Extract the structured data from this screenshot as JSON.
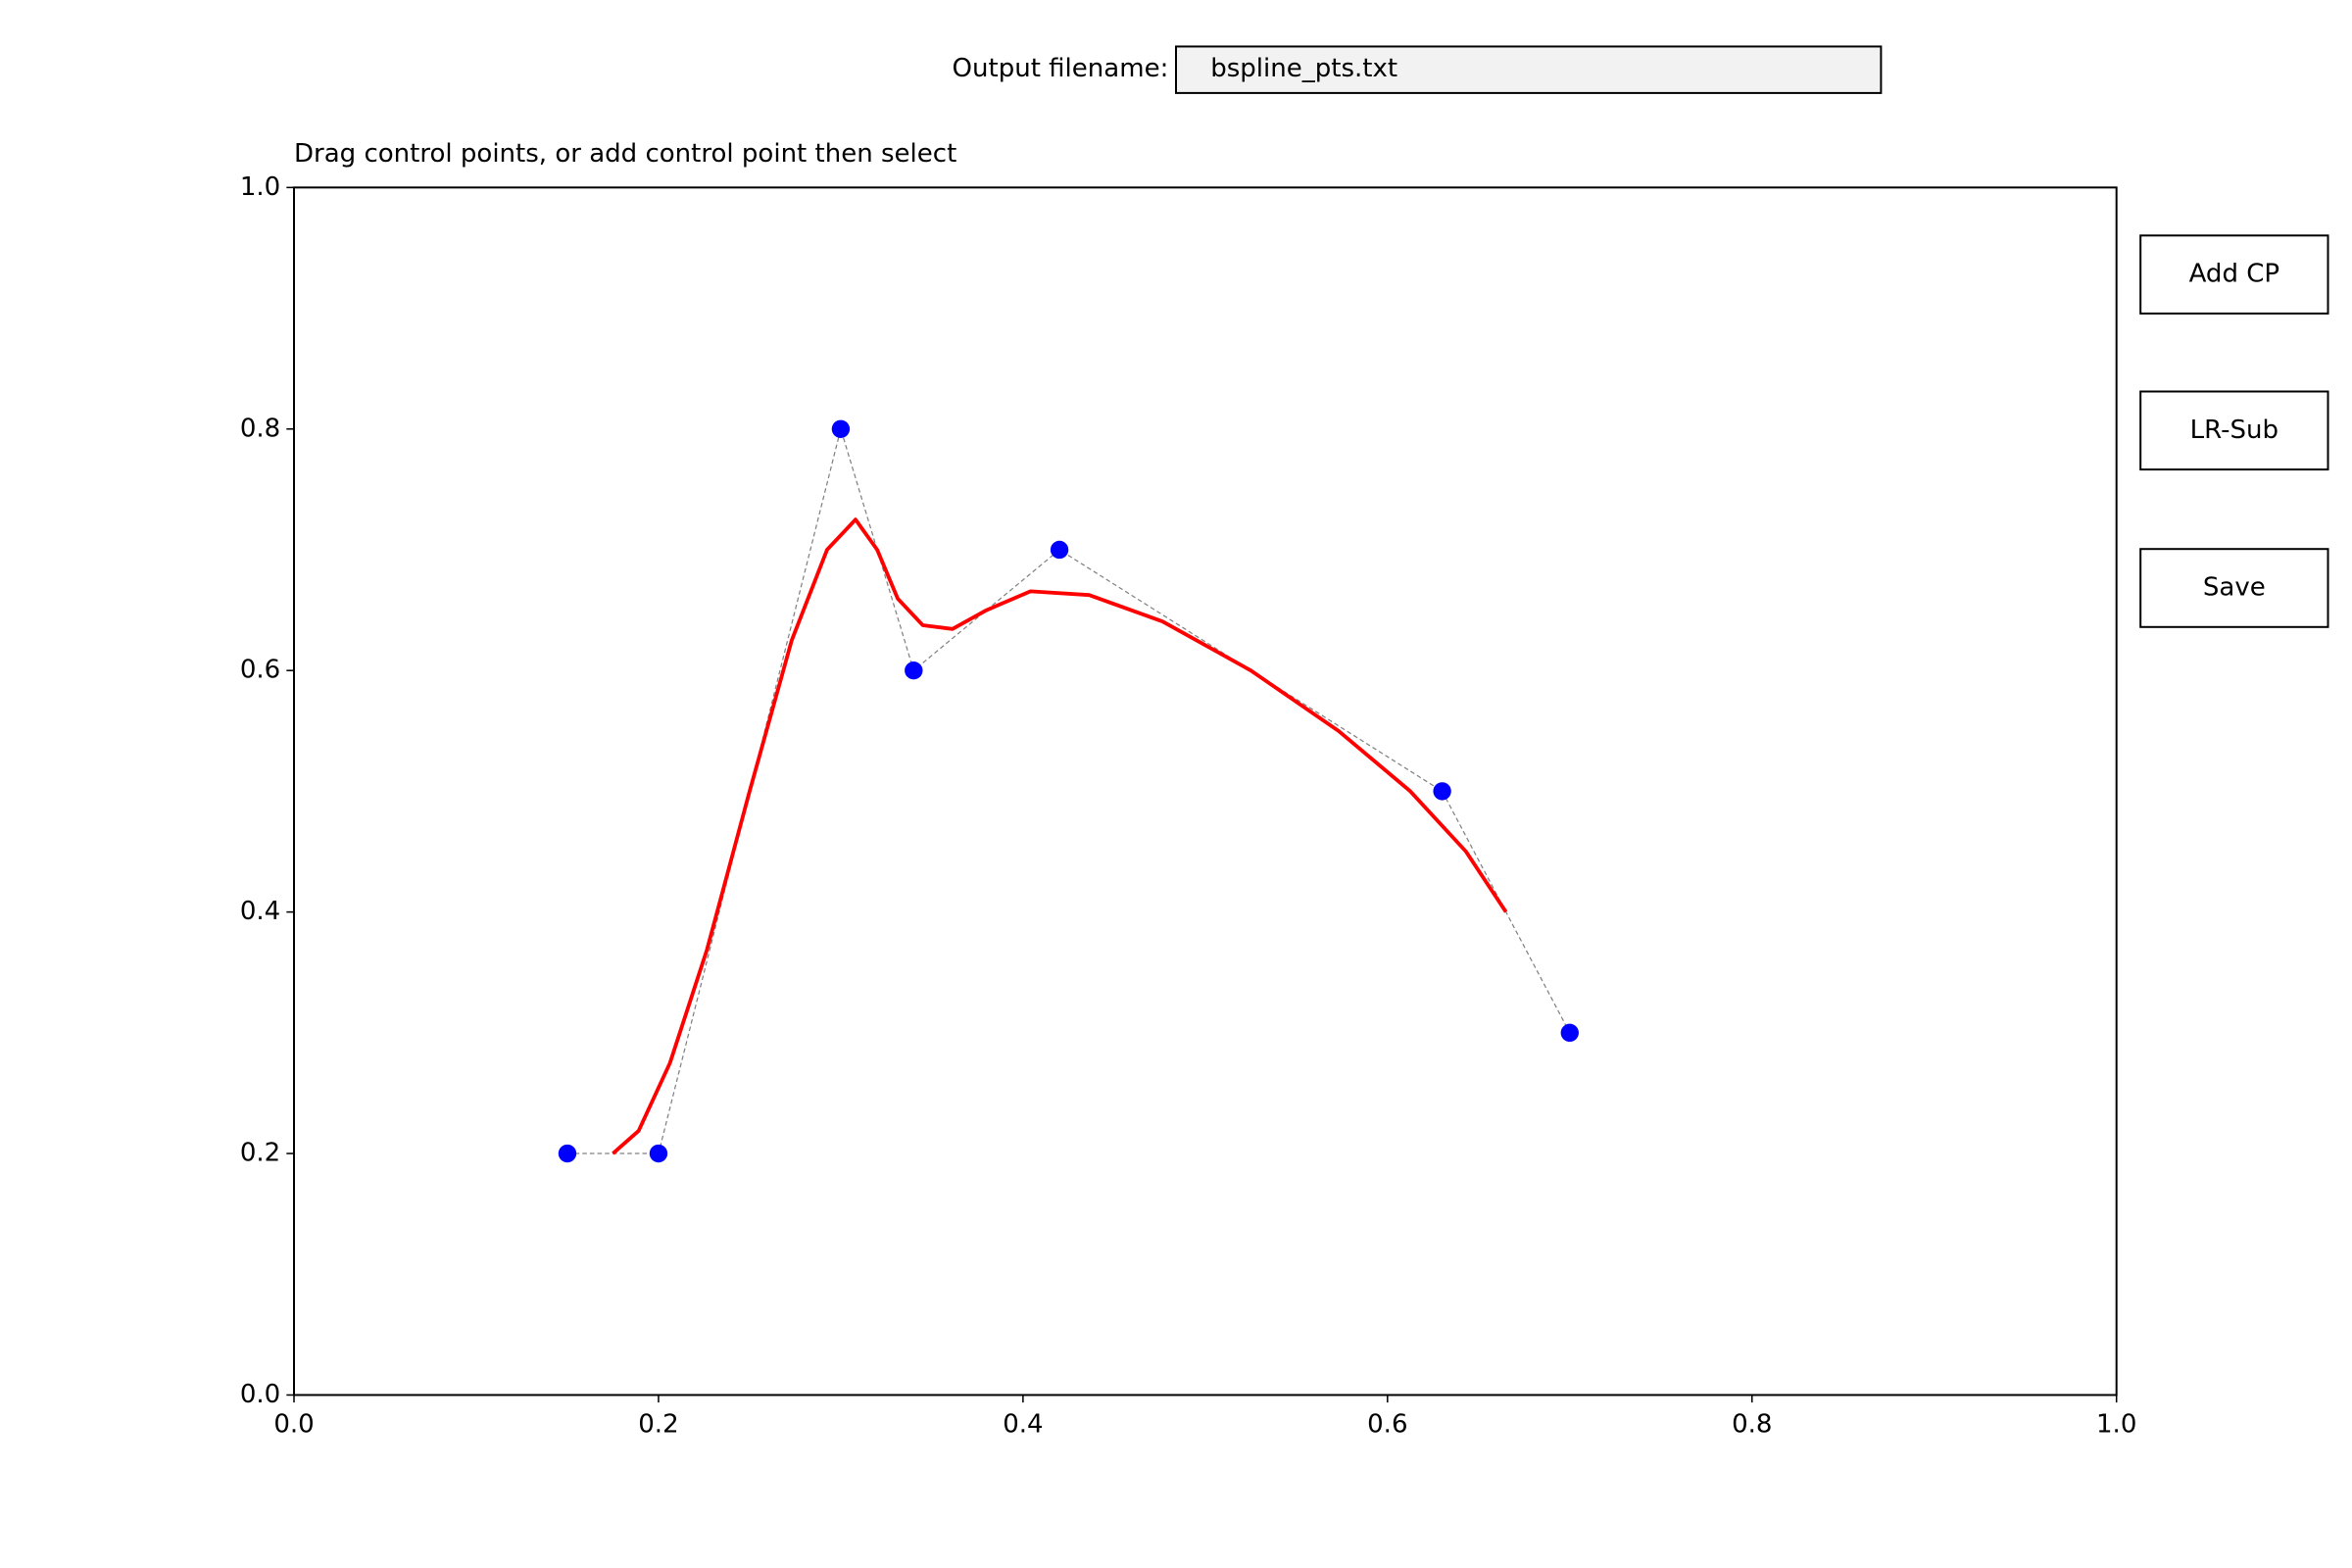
{
  "ui": {
    "filename_label": "Output filename:",
    "filename_value": "bspline_pts.txt",
    "buttons": [
      "Add CP",
      "LR-Sub",
      "Save"
    ]
  },
  "chart_data": {
    "type": "line",
    "title": "Drag control points, or add control point then select",
    "xlim": [
      0,
      1
    ],
    "ylim": [
      0,
      1
    ],
    "xticks": [
      {
        "value": 0,
        "label": "0.0"
      },
      0.2,
      0.4,
      0.6,
      0.8,
      {
        "value": 1,
        "label": "1.0"
      }
    ],
    "yticks": [
      {
        "value": 0,
        "label": "0.0"
      },
      0.2,
      0.4,
      0.6,
      0.8,
      {
        "value": 1,
        "label": "1.0"
      }
    ],
    "control_polygon_color": "#808080",
    "series": [
      {
        "type": "scatter",
        "color": "#0000ff",
        "x": [
          0.15,
          0.2,
          0.3,
          0.34,
          0.42,
          0.63,
          0.7
        ],
        "values": [
          0.2,
          0.2,
          0.8,
          0.6,
          0.7,
          0.5,
          0.3
        ]
      },
      {
        "type": "line",
        "color": "#ff0000",
        "x": [
          0.175,
          0.1891,
          0.2063,
          0.2266,
          0.25,
          0.2731,
          0.2925,
          0.3081,
          0.32,
          0.3313,
          0.345,
          0.3613,
          0.38,
          0.4041,
          0.4363,
          0.4766,
          0.525,
          0.5731,
          0.6125,
          0.6431,
          0.665
        ],
        "values": [
          0.2,
          0.2188,
          0.275,
          0.3688,
          0.5,
          0.625,
          0.7,
          0.725,
          0.7,
          0.6594,
          0.6375,
          0.6344,
          0.65,
          0.6656,
          0.6625,
          0.6406,
          0.6,
          0.55,
          0.5,
          0.45,
          0.4
        ]
      }
    ]
  }
}
